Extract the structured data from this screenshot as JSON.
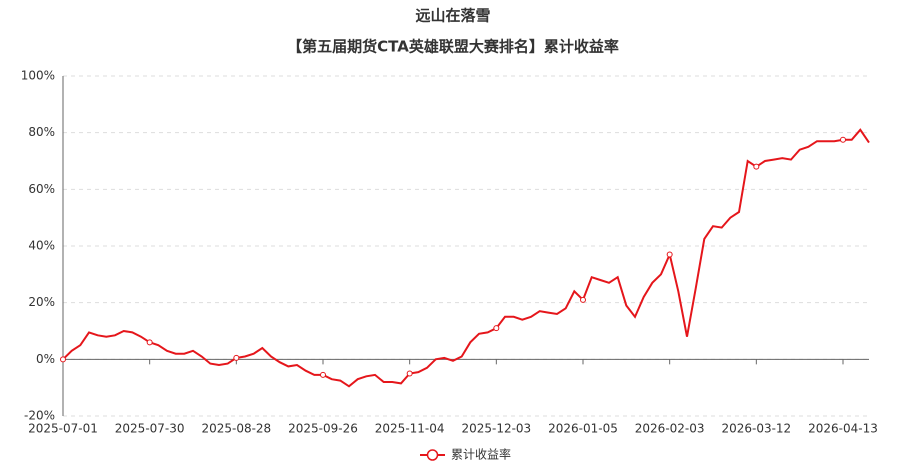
{
  "chart_data": {
    "type": "line",
    "title": "远山在落雪",
    "subtitle": "【第五届期货CTA英雄联盟大赛排名】累计收益率",
    "categories": [
      "2025-07-01",
      null,
      null,
      null,
      null,
      null,
      null,
      null,
      null,
      null,
      "2025-07-30",
      null,
      null,
      null,
      null,
      null,
      null,
      null,
      null,
      null,
      "2025-08-28",
      null,
      null,
      null,
      null,
      null,
      null,
      null,
      null,
      null,
      "2025-09-26",
      null,
      null,
      null,
      null,
      null,
      null,
      null,
      null,
      null,
      "2025-11-04",
      null,
      null,
      null,
      null,
      null,
      null,
      null,
      null,
      null,
      "2025-12-03",
      null,
      null,
      null,
      null,
      null,
      null,
      null,
      null,
      null,
      "2026-01-05",
      null,
      null,
      null,
      null,
      null,
      null,
      null,
      null,
      null,
      "2026-02-03",
      null,
      null,
      null,
      null,
      null,
      null,
      null,
      null,
      null,
      "2026-03-12",
      null,
      null,
      null,
      null,
      null,
      null,
      null,
      null,
      null,
      "2026-04-13",
      null,
      null,
      null
    ],
    "series": [
      {
        "name": "累计收益率",
        "color": "#e5161b",
        "values": [
          0,
          3,
          5,
          9.5,
          8.5,
          8,
          8.5,
          10,
          9.5,
          8,
          6,
          5,
          3,
          2,
          2,
          3,
          1,
          -1.5,
          -2,
          -1.5,
          0.5,
          1,
          2,
          4,
          1,
          -1,
          -2.5,
          -2,
          -4,
          -5.5,
          -5.5,
          -7,
          -7.5,
          -9.5,
          -7,
          -6,
          -5.5,
          -8,
          -8,
          -8.5,
          -5,
          -4.5,
          -3,
          0,
          0.5,
          -0.5,
          1,
          6,
          9,
          9.5,
          11,
          15,
          15,
          14,
          15,
          17,
          16.5,
          16,
          18,
          24,
          21,
          29,
          28,
          27,
          29,
          19,
          15,
          22,
          27,
          30,
          37,
          24,
          8,
          25,
          42.5,
          47,
          46.5,
          50,
          52,
          70,
          68,
          70,
          70.5,
          71,
          70.5,
          74,
          75,
          77,
          77,
          77,
          77.5,
          77.5,
          81,
          76.5
        ]
      }
    ],
    "ylim": [
      -20,
      100
    ],
    "yticks": [
      {
        "value": -20,
        "label": "-20%"
      },
      {
        "value": 0,
        "label": "0%"
      },
      {
        "value": 20,
        "label": "20%"
      },
      {
        "value": 40,
        "label": "40%"
      },
      {
        "value": 60,
        "label": "60%"
      },
      {
        "value": 80,
        "label": "80%"
      },
      {
        "value": 100,
        "label": "100%"
      }
    ],
    "grid": true
  }
}
